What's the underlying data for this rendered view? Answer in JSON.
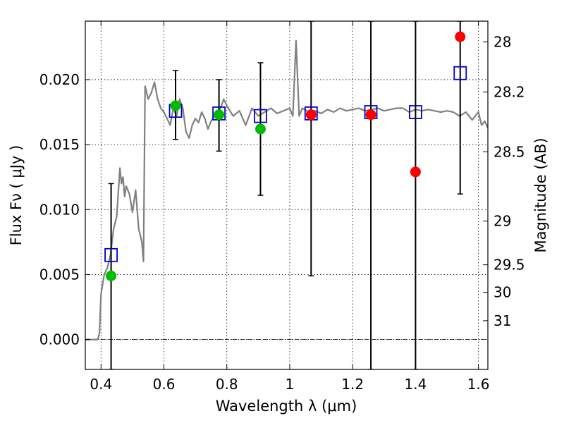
{
  "chart_data": {
    "type": "scatter",
    "xlabel": "Wavelength  λ (μm)",
    "ylabel": "Flux  Fν  ( μJy )",
    "ylabel_right": "Magnitude (AB)",
    "xlim": [
      0.35,
      1.63
    ],
    "ylim": [
      -0.0023,
      0.0245
    ],
    "x_ticks": [
      0.4,
      0.6,
      0.8,
      1.0,
      1.2,
      1.4,
      1.6
    ],
    "x_tick_labels": [
      "0.4",
      "0.6",
      "0.8",
      "1",
      "1.2",
      "1.4",
      "1.6"
    ],
    "y_ticks": [
      0.0,
      0.005,
      0.01,
      0.015,
      0.02
    ],
    "y_tick_labels": [
      "0.000",
      "0.005",
      "0.010",
      "0.015",
      "0.020"
    ],
    "right_ticks": [
      {
        "label": "28",
        "flux": 0.02291
      },
      {
        "label": "28.2",
        "flux": 0.01905
      },
      {
        "label": "28.5",
        "flux": 0.01445
      },
      {
        "label": "29",
        "flux": 0.00912
      },
      {
        "label": "29.5",
        "flux": 0.00575
      },
      {
        "label": "30",
        "flux": 0.00363
      },
      {
        "label": "31",
        "flux": 0.00145
      }
    ],
    "grid": true,
    "zero_line": 0.0,
    "colors": {
      "spectrum": "#808080",
      "model_points": "#0000cc",
      "detections": "#00bb00",
      "upper_points": "#ff0000",
      "errorbars": "#000000"
    },
    "series": [
      {
        "kind": "spectrum",
        "x": [
          0.35,
          0.39,
          0.395,
          0.4,
          0.41,
          0.42,
          0.43,
          0.44,
          0.445,
          0.45,
          0.46,
          0.465,
          0.47,
          0.475,
          0.48,
          0.49,
          0.5,
          0.51,
          0.52,
          0.53,
          0.535,
          0.54,
          0.55,
          0.56,
          0.57,
          0.58,
          0.59,
          0.6,
          0.61,
          0.62,
          0.63,
          0.64,
          0.65,
          0.66,
          0.67,
          0.68,
          0.69,
          0.7,
          0.71,
          0.72,
          0.73,
          0.74,
          0.75,
          0.76,
          0.77,
          0.78,
          0.79,
          0.8,
          0.82,
          0.84,
          0.86,
          0.88,
          0.9,
          0.92,
          0.94,
          0.96,
          0.98,
          1.0,
          1.01,
          1.02,
          1.03,
          1.04,
          1.06,
          1.08,
          1.1,
          1.12,
          1.14,
          1.16,
          1.18,
          1.2,
          1.22,
          1.24,
          1.26,
          1.28,
          1.3,
          1.32,
          1.34,
          1.36,
          1.38,
          1.4,
          1.42,
          1.44,
          1.46,
          1.48,
          1.5,
          1.52,
          1.54,
          1.56,
          1.58,
          1.6,
          1.61,
          1.62,
          1.63
        ],
        "y": [
          0.0,
          0.0,
          0.0005,
          0.0035,
          0.005,
          0.0055,
          0.0065,
          0.0085,
          0.009,
          0.0095,
          0.0132,
          0.012,
          0.0125,
          0.011,
          0.0118,
          0.0112,
          0.0098,
          0.0115,
          0.0085,
          0.0075,
          0.006,
          0.0195,
          0.0185,
          0.019,
          0.0198,
          0.0185,
          0.0178,
          0.0175,
          0.017,
          0.0165,
          0.0178,
          0.0172,
          0.0185,
          0.0178,
          0.016,
          0.0155,
          0.0165,
          0.017,
          0.0167,
          0.0175,
          0.017,
          0.0162,
          0.0168,
          0.0172,
          0.0175,
          0.0178,
          0.0185,
          0.018,
          0.0172,
          0.0176,
          0.0165,
          0.0178,
          0.0172,
          0.0175,
          0.0178,
          0.0174,
          0.0176,
          0.0178,
          0.0172,
          0.023,
          0.0172,
          0.0178,
          0.0175,
          0.0176,
          0.0174,
          0.0177,
          0.0175,
          0.0178,
          0.0176,
          0.0177,
          0.0178,
          0.0176,
          0.0177,
          0.0178,
          0.0176,
          0.0177,
          0.0178,
          0.0178,
          0.0175,
          0.0177,
          0.0176,
          0.0177,
          0.0176,
          0.0175,
          0.0176,
          0.0175,
          0.0172,
          0.0175,
          0.0169,
          0.0175,
          0.0165,
          0.0168,
          0.0163
        ]
      },
      {
        "kind": "model_points",
        "x": [
          0.432,
          0.637,
          0.775,
          0.907,
          1.068,
          1.258,
          1.4,
          1.542
        ],
        "y": [
          0.0065,
          0.0176,
          0.0174,
          0.0172,
          0.0174,
          0.0175,
          0.0175,
          0.0205
        ]
      },
      {
        "kind": "detections",
        "x": [
          0.432,
          0.637,
          0.775,
          0.907
        ],
        "y": [
          0.0049,
          0.018,
          0.0173,
          0.0162
        ],
        "err_low": [
          -0.0023,
          0.0154,
          0.0145,
          0.0111
        ],
        "err_high": [
          0.012,
          0.0207,
          0.02,
          0.0213
        ]
      },
      {
        "kind": "upper_points",
        "x": [
          1.068,
          1.258,
          1.4,
          1.542
        ],
        "y": [
          0.0173,
          0.0173,
          0.0129,
          0.0233
        ],
        "err_low": [
          0.0049,
          -0.0023,
          -0.0023,
          0.0112
        ],
        "err_high": [
          0.0245,
          0.0245,
          0.0245,
          0.0245
        ]
      }
    ]
  }
}
